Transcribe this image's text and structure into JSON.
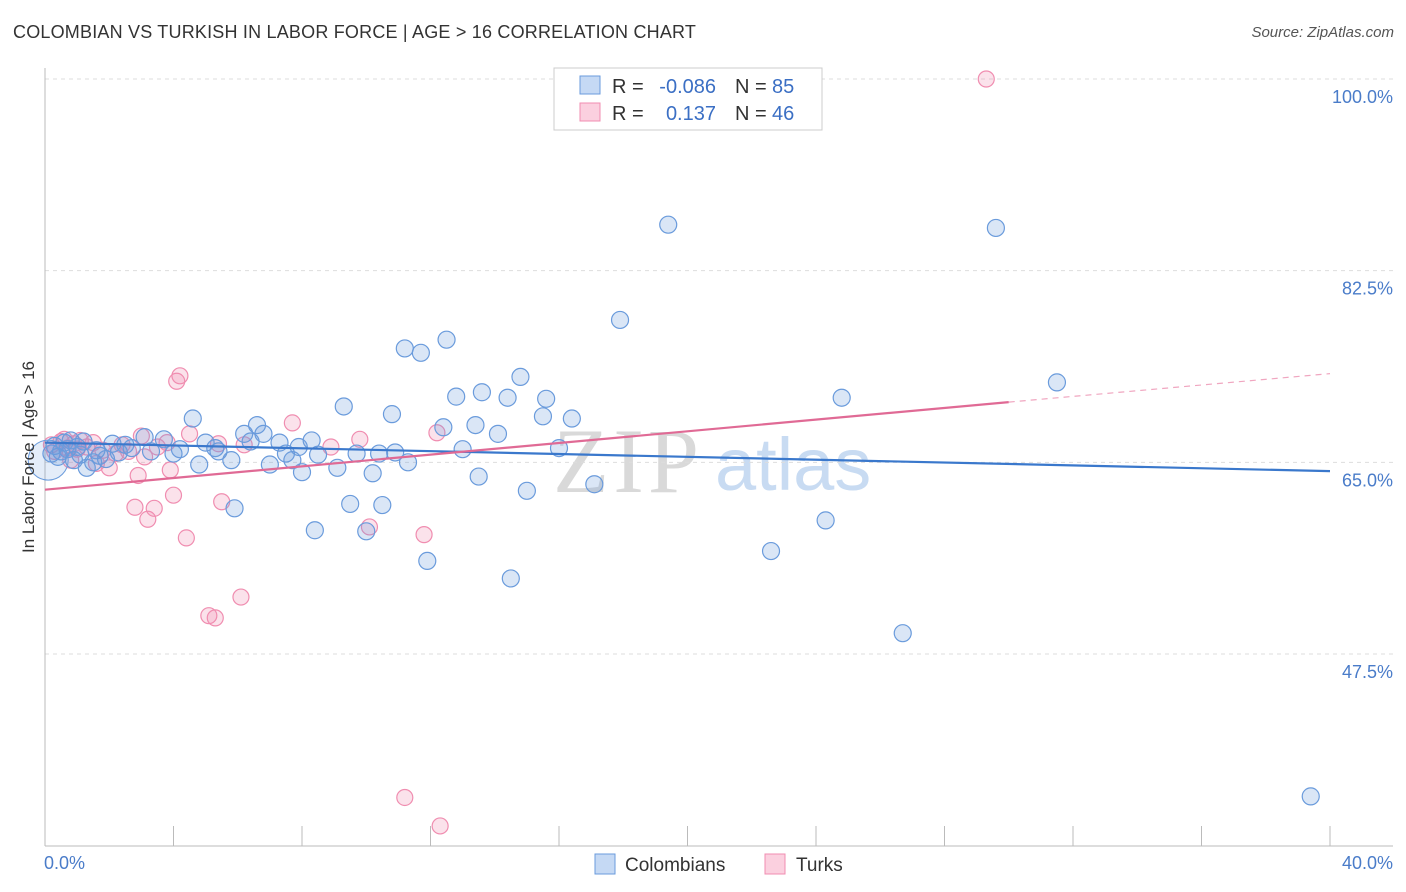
{
  "header": {
    "title": "COLOMBIAN VS TURKISH IN LABOR FORCE | AGE > 16 CORRELATION CHART",
    "source": "Source: ZipAtlas.com"
  },
  "watermark": {
    "part1": "ZIP",
    "part2": "atlas"
  },
  "legend_box": {
    "rows": [
      {
        "r_label": "R =",
        "r_value": "-0.086",
        "n_label": "N =",
        "n_value": "85",
        "color": "#6a9bdc"
      },
      {
        "r_label": "R =",
        "r_value": "0.137",
        "n_label": "N =",
        "n_value": "46",
        "color": "#f08db0"
      }
    ]
  },
  "bottom_legend": [
    {
      "label": "Colombians",
      "color": "#6a9bdc"
    },
    {
      "label": "Turks",
      "color": "#f08db0"
    }
  ],
  "chart_data": {
    "type": "scatter",
    "title": "COLOMBIAN VS TURKISH IN LABOR FORCE | AGE > 16 CORRELATION CHART",
    "xlabel": "",
    "ylabel": "In Labor Force | Age > 16",
    "xlim": [
      0,
      40
    ],
    "ylim": [
      29,
      102
    ],
    "x_tick_labels": [
      "0.0%",
      "40.0%"
    ],
    "y_ticks": [
      47.5,
      65.0,
      82.5,
      100.0
    ],
    "y_tick_labels": [
      "47.5%",
      "65.0%",
      "82.5%",
      "100.0%"
    ],
    "grid": "horizontal dashed",
    "series": [
      {
        "name": "Colombians",
        "color": "#6a9bdc",
        "points": [
          [
            0.2,
            65.8
          ],
          [
            0.3,
            66.5
          ],
          [
            0.4,
            65.5
          ],
          [
            0.5,
            66.0
          ],
          [
            0.6,
            66.8
          ],
          [
            0.7,
            66.2
          ],
          [
            0.8,
            67.0
          ],
          [
            0.9,
            65.2
          ],
          [
            1.0,
            66.4
          ],
          [
            1.1,
            65.7
          ],
          [
            1.2,
            66.9
          ],
          [
            1.3,
            64.5
          ],
          [
            1.5,
            65.0
          ],
          [
            1.6,
            66.1
          ],
          [
            1.7,
            65.6
          ],
          [
            1.9,
            65.3
          ],
          [
            2.1,
            66.7
          ],
          [
            2.3,
            65.9
          ],
          [
            2.5,
            66.6
          ],
          [
            2.7,
            66.3
          ],
          [
            3.1,
            67.3
          ],
          [
            3.3,
            66.0
          ],
          [
            3.7,
            67.1
          ],
          [
            4.0,
            65.8
          ],
          [
            4.2,
            66.2
          ],
          [
            4.6,
            69.0
          ],
          [
            4.8,
            64.8
          ],
          [
            5.0,
            66.8
          ],
          [
            5.3,
            66.3
          ],
          [
            5.4,
            66.0
          ],
          [
            5.8,
            65.2
          ],
          [
            5.9,
            60.8
          ],
          [
            6.2,
            67.6
          ],
          [
            6.4,
            66.9
          ],
          [
            6.6,
            68.4
          ],
          [
            6.8,
            67.6
          ],
          [
            7.0,
            64.8
          ],
          [
            7.3,
            66.8
          ],
          [
            7.5,
            65.8
          ],
          [
            7.7,
            65.2
          ],
          [
            7.9,
            66.4
          ],
          [
            8.0,
            64.1
          ],
          [
            8.3,
            67.0
          ],
          [
            8.4,
            58.8
          ],
          [
            8.5,
            65.7
          ],
          [
            9.1,
            64.5
          ],
          [
            9.3,
            70.1
          ],
          [
            9.5,
            61.2
          ],
          [
            9.7,
            65.8
          ],
          [
            10.0,
            58.7
          ],
          [
            10.2,
            64.0
          ],
          [
            10.4,
            65.8
          ],
          [
            10.5,
            61.1
          ],
          [
            10.8,
            69.4
          ],
          [
            10.9,
            65.9
          ],
          [
            11.2,
            75.4
          ],
          [
            11.3,
            65.0
          ],
          [
            11.7,
            75.0
          ],
          [
            11.9,
            56.0
          ],
          [
            12.4,
            68.2
          ],
          [
            12.5,
            76.2
          ],
          [
            12.8,
            71.0
          ],
          [
            13.0,
            66.2
          ],
          [
            13.4,
            68.4
          ],
          [
            13.5,
            63.7
          ],
          [
            13.6,
            71.4
          ],
          [
            14.1,
            67.6
          ],
          [
            14.4,
            70.9
          ],
          [
            14.5,
            54.4
          ],
          [
            14.8,
            72.8
          ],
          [
            15.0,
            62.4
          ],
          [
            15.5,
            69.2
          ],
          [
            15.6,
            70.8
          ],
          [
            16.0,
            66.3
          ],
          [
            16.4,
            69.0
          ],
          [
            17.1,
            63.0
          ],
          [
            17.9,
            78.0
          ],
          [
            19.4,
            86.7
          ],
          [
            22.6,
            56.9
          ],
          [
            24.3,
            59.7
          ],
          [
            24.8,
            70.9
          ],
          [
            26.7,
            49.4
          ],
          [
            29.6,
            86.4
          ],
          [
            31.5,
            72.3
          ],
          [
            39.4,
            34.5
          ]
        ],
        "trend": {
          "x": [
            0,
            40
          ],
          "y": [
            66.8,
            64.2
          ],
          "extended": false
        }
      },
      {
        "name": "Turks",
        "color": "#f08db0",
        "points": [
          [
            0.2,
            66.6
          ],
          [
            0.3,
            66.0
          ],
          [
            0.5,
            66.9
          ],
          [
            0.6,
            67.1
          ],
          [
            0.7,
            66.3
          ],
          [
            0.8,
            65.2
          ],
          [
            0.9,
            66.7
          ],
          [
            1.0,
            66.2
          ],
          [
            1.1,
            67.0
          ],
          [
            1.3,
            66.4
          ],
          [
            1.5,
            66.8
          ],
          [
            1.6,
            64.9
          ],
          [
            1.8,
            66.1
          ],
          [
            2.0,
            64.5
          ],
          [
            2.2,
            65.8
          ],
          [
            2.4,
            66.6
          ],
          [
            2.6,
            66.0
          ],
          [
            2.8,
            60.9
          ],
          [
            2.9,
            63.8
          ],
          [
            3.0,
            67.4
          ],
          [
            3.1,
            65.5
          ],
          [
            3.2,
            59.8
          ],
          [
            3.4,
            60.8
          ],
          [
            3.5,
            66.4
          ],
          [
            3.8,
            66.8
          ],
          [
            3.9,
            64.3
          ],
          [
            4.0,
            62.0
          ],
          [
            4.1,
            72.4
          ],
          [
            4.2,
            72.9
          ],
          [
            4.4,
            58.1
          ],
          [
            4.5,
            67.6
          ],
          [
            5.1,
            51.0
          ],
          [
            5.3,
            50.8
          ],
          [
            5.4,
            66.7
          ],
          [
            5.5,
            61.4
          ],
          [
            6.1,
            52.7
          ],
          [
            6.2,
            66.6
          ],
          [
            7.7,
            68.6
          ],
          [
            8.9,
            66.4
          ],
          [
            9.8,
            67.1
          ],
          [
            10.1,
            59.1
          ],
          [
            11.2,
            34.4
          ],
          [
            11.8,
            58.4
          ],
          [
            12.2,
            67.7
          ],
          [
            12.3,
            31.8
          ],
          [
            29.3,
            100.0
          ]
        ],
        "trend": {
          "x": [
            0,
            30
          ],
          "y": [
            62.5,
            70.5
          ],
          "extended": true,
          "extend_to_x": 40,
          "extend_to_y": 73.1
        }
      }
    ]
  }
}
